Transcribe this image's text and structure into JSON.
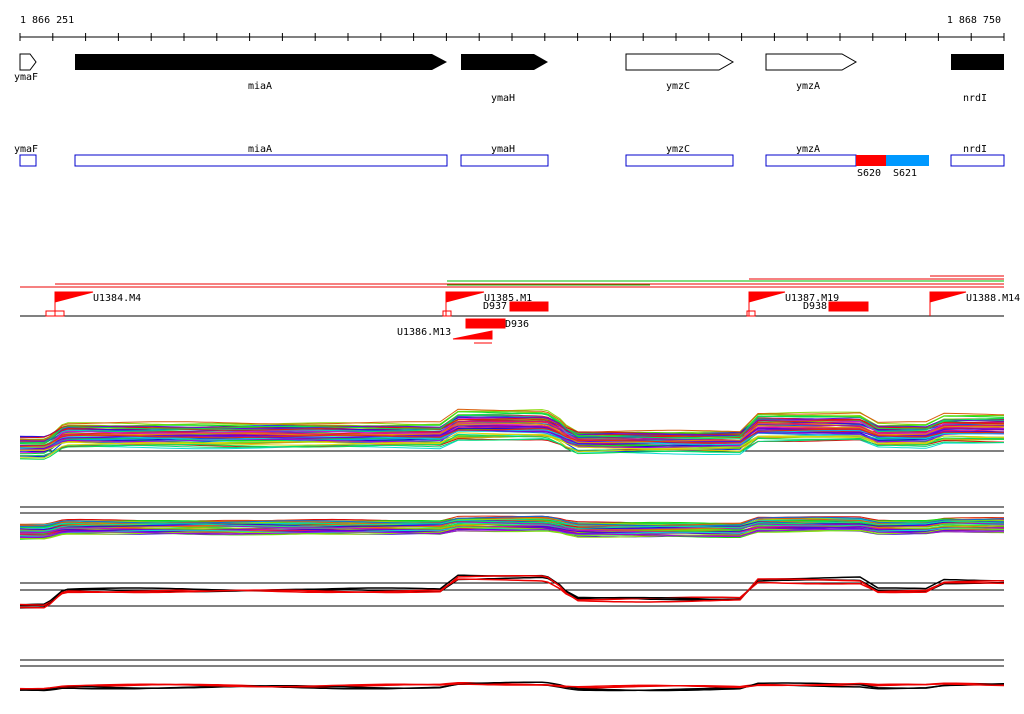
{
  "ruler": {
    "start": "1 866 251",
    "end": "1 868 750"
  },
  "genes": [
    "ymaF",
    "miaA",
    "ymaH",
    "ymzC",
    "ymzA",
    "nrdI"
  ],
  "regions": [
    "ymaF",
    "miaA",
    "ymaH",
    "ymzC",
    "ymzA",
    "nrdI"
  ],
  "segments": [
    "S620",
    "S621"
  ],
  "features": [
    "U1384.M4",
    "U1385.M1",
    "D937",
    "D936",
    "U1386.M13",
    "U1387.M19",
    "D938",
    "U1388.M14"
  ]
}
